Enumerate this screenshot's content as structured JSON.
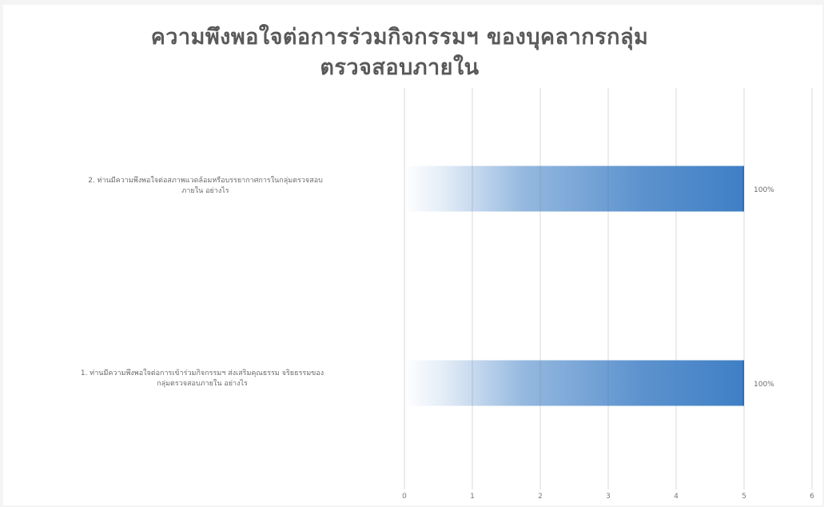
{
  "chart_data": {
    "type": "bar",
    "orientation": "horizontal",
    "title": "ความพึงพอใจต่อการร่วมกิจกรรมฯ ของบุคลากรกลุ่มตรวจสอบภายใน",
    "title_lines": [
      "ความพึงพอใจต่อการร่วมกิจกรรมฯ ของบุคลากรกลุ่ม",
      "ตรวจสอบภายใน"
    ],
    "categories": [
      "1. ท่านมีความพึงพอใจต่อการเข้าร่วมกิจกรรมฯ ส่งเสริมคุณธรรม จริยธรรมของ กลุ่มตรวจสอบภายใน อย่างไร",
      "2. ท่านมีความพึงพอใจต่อสภาพแวดล้อมหรือบรรยากาศการในกลุ่มตรวจสอบภายใน อย่างไร"
    ],
    "category_label_lines": [
      [
        "1. ท่านมีความพึงพอใจต่อการเข้าร่วมกิจกรรมฯ ส่งเสริมคุณธรรม จริยธรรมของ",
        "กลุ่มตรวจสอบภายใน อย่างไร"
      ],
      [
        "2. ท่านมีความพึงพอใจต่อสภาพแวดล้อมหรือบรรยากาศการในกลุ่มตรวจสอบ",
        "ภายใน อย่างไร"
      ]
    ],
    "values": [
      5,
      5
    ],
    "data_labels": [
      "100%",
      "100%"
    ],
    "xlim": [
      0,
      6
    ],
    "xticks": [
      0,
      1,
      2,
      3,
      4,
      5,
      6
    ],
    "grid": true,
    "legend": "none",
    "bar_color": "#3f7fc5"
  }
}
